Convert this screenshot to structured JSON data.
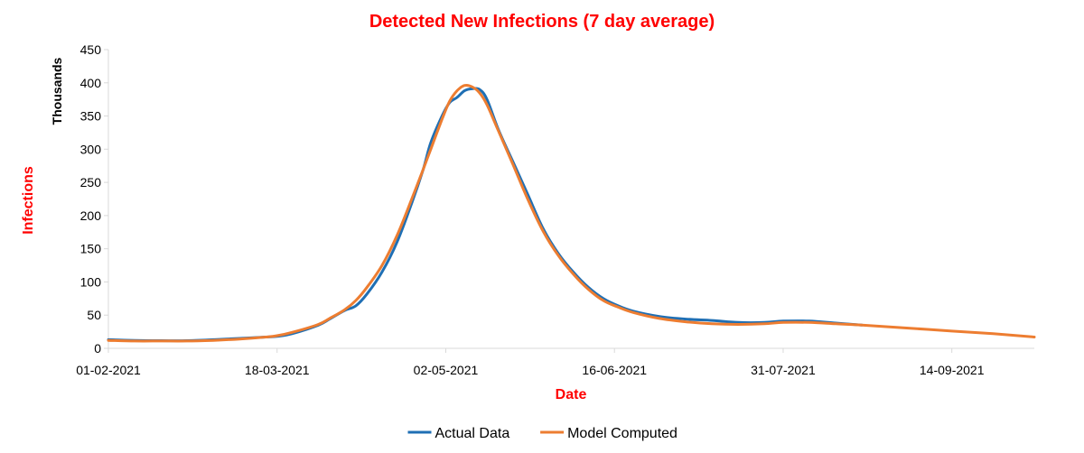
{
  "chart_data": {
    "type": "line",
    "title": "Detected New Infections (7 day average)",
    "xlabel": "Date",
    "ylabel": "Infections",
    "yunit": "Thousands",
    "x_start": "2021-02-01",
    "x_end": "2021-10-06",
    "xticks": [
      "01-02-2021",
      "18-03-2021",
      "02-05-2021",
      "16-06-2021",
      "31-07-2021",
      "14-09-2021"
    ],
    "ylim": [
      0,
      450
    ],
    "yticks": [
      0,
      50,
      100,
      150,
      200,
      250,
      300,
      350,
      400,
      450
    ],
    "grid": false,
    "legend_position": "bottom",
    "colors": {
      "title": "#ff0000",
      "xlabel": "#ff0000",
      "ylabel": "#ff0000",
      "yunit": "#000000",
      "axis": "#d9d9d9"
    },
    "series": [
      {
        "name": "Actual Data",
        "color": "#1f6fb4",
        "points": [
          [
            "2021-02-01",
            13
          ],
          [
            "2021-02-08",
            12
          ],
          [
            "2021-02-15",
            11.5
          ],
          [
            "2021-02-22",
            11.5
          ],
          [
            "2021-03-01",
            13
          ],
          [
            "2021-03-08",
            15
          ],
          [
            "2021-03-15",
            17
          ],
          [
            "2021-03-18",
            18
          ],
          [
            "2021-03-22",
            22
          ],
          [
            "2021-03-29",
            35
          ],
          [
            "2021-04-01",
            44
          ],
          [
            "2021-04-05",
            57
          ],
          [
            "2021-04-08",
            64
          ],
          [
            "2021-04-11",
            82
          ],
          [
            "2021-04-15",
            115
          ],
          [
            "2021-04-19",
            160
          ],
          [
            "2021-04-23",
            220
          ],
          [
            "2021-04-26",
            270
          ],
          [
            "2021-04-28",
            310
          ],
          [
            "2021-05-01",
            350
          ],
          [
            "2021-05-03",
            370
          ],
          [
            "2021-05-05",
            378
          ],
          [
            "2021-05-07",
            388
          ],
          [
            "2021-05-09",
            391
          ],
          [
            "2021-05-11",
            390
          ],
          [
            "2021-05-13",
            375
          ],
          [
            "2021-05-16",
            330
          ],
          [
            "2021-05-20",
            280
          ],
          [
            "2021-05-24",
            230
          ],
          [
            "2021-05-28",
            180
          ],
          [
            "2021-06-01",
            143
          ],
          [
            "2021-06-05",
            115
          ],
          [
            "2021-06-09",
            92
          ],
          [
            "2021-06-13",
            75
          ],
          [
            "2021-06-17",
            64
          ],
          [
            "2021-06-21",
            56
          ],
          [
            "2021-06-28",
            48
          ],
          [
            "2021-07-05",
            44
          ],
          [
            "2021-07-12",
            42
          ],
          [
            "2021-07-19",
            39
          ],
          [
            "2021-07-26",
            39
          ],
          [
            "2021-07-31",
            41
          ],
          [
            "2021-08-07",
            41
          ],
          [
            "2021-08-14",
            38
          ],
          [
            "2021-08-21",
            35
          ]
        ]
      },
      {
        "name": "Model Computed",
        "color": "#ed7d31",
        "points": [
          [
            "2021-02-01",
            12
          ],
          [
            "2021-02-08",
            11
          ],
          [
            "2021-02-15",
            11
          ],
          [
            "2021-02-22",
            11
          ],
          [
            "2021-03-01",
            12
          ],
          [
            "2021-03-08",
            14
          ],
          [
            "2021-03-15",
            17
          ],
          [
            "2021-03-18",
            19
          ],
          [
            "2021-03-22",
            24
          ],
          [
            "2021-03-29",
            36
          ],
          [
            "2021-04-01",
            45
          ],
          [
            "2021-04-05",
            58
          ],
          [
            "2021-04-08",
            72
          ],
          [
            "2021-04-11",
            92
          ],
          [
            "2021-04-15",
            125
          ],
          [
            "2021-04-19",
            170
          ],
          [
            "2021-04-23",
            226
          ],
          [
            "2021-04-26",
            270
          ],
          [
            "2021-04-28",
            300
          ],
          [
            "2021-05-01",
            345
          ],
          [
            "2021-05-03",
            372
          ],
          [
            "2021-05-05",
            388
          ],
          [
            "2021-05-07",
            396
          ],
          [
            "2021-05-09",
            394
          ],
          [
            "2021-05-11",
            385
          ],
          [
            "2021-05-13",
            367
          ],
          [
            "2021-05-16",
            328
          ],
          [
            "2021-05-20",
            276
          ],
          [
            "2021-05-24",
            223
          ],
          [
            "2021-05-28",
            176
          ],
          [
            "2021-06-01",
            140
          ],
          [
            "2021-06-05",
            112
          ],
          [
            "2021-06-09",
            89
          ],
          [
            "2021-06-13",
            72
          ],
          [
            "2021-06-17",
            62
          ],
          [
            "2021-06-21",
            54
          ],
          [
            "2021-06-28",
            45
          ],
          [
            "2021-07-05",
            40
          ],
          [
            "2021-07-12",
            37
          ],
          [
            "2021-07-19",
            36
          ],
          [
            "2021-07-26",
            37
          ],
          [
            "2021-07-31",
            39
          ],
          [
            "2021-08-07",
            39
          ],
          [
            "2021-08-14",
            37
          ],
          [
            "2021-08-21",
            35
          ],
          [
            "2021-09-01",
            31
          ],
          [
            "2021-09-14",
            26
          ],
          [
            "2021-09-25",
            22
          ],
          [
            "2021-10-06",
            17
          ]
        ]
      }
    ]
  }
}
